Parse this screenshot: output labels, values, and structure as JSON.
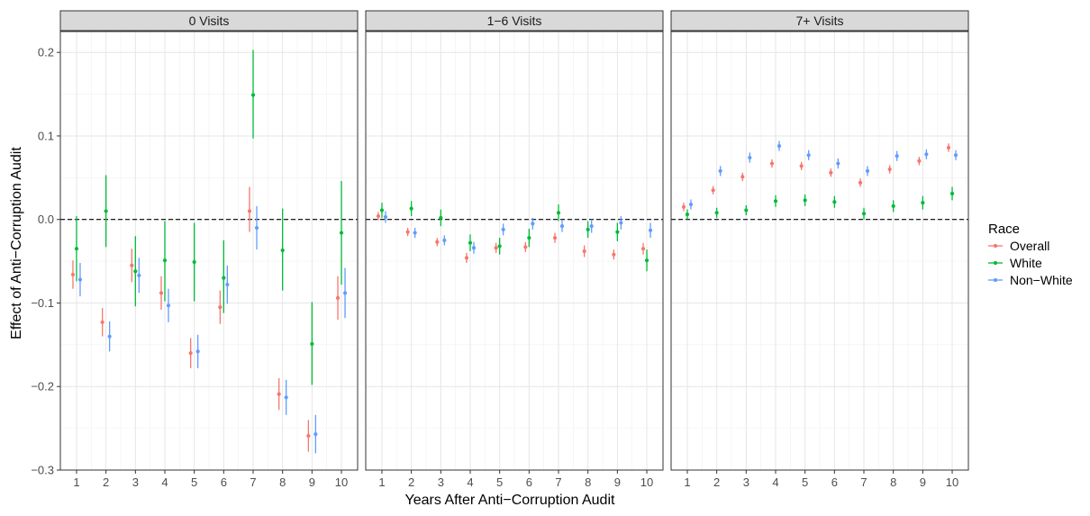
{
  "chart_data": {
    "type": "scatter",
    "subtype": "point-range faceted",
    "xlabel": "Years After Anti−Corruption Audit",
    "ylabel": "Effect of Anti−Corruption Audit",
    "x": [
      1,
      2,
      3,
      4,
      5,
      6,
      7,
      8,
      9,
      10
    ],
    "x_tick_labels": [
      "1",
      "2",
      "3",
      "4",
      "5",
      "6",
      "7",
      "8",
      "9",
      "10"
    ],
    "ylim": [
      -0.3,
      0.225
    ],
    "y_ticks": [
      -0.3,
      -0.2,
      -0.1,
      0.0,
      0.1,
      0.2
    ],
    "y_tick_labels": [
      "−0.3",
      "−0.2",
      "−0.1",
      "0.0",
      "0.1",
      "0.2"
    ],
    "reference_line": {
      "y": 0,
      "style": "dashed"
    },
    "grid": true,
    "legend": {
      "title": "Race",
      "position": "right",
      "entries": [
        {
          "name": "Overall",
          "color": "#F8766D"
        },
        {
          "name": "White",
          "color": "#00BA38"
        },
        {
          "name": "Non−White",
          "color": "#619CFF"
        }
      ]
    },
    "facets": [
      {
        "label": "0 Visits",
        "series": [
          {
            "name": "Overall",
            "color": "#F8766D",
            "values": [
              -0.066,
              -0.123,
              -0.055,
              -0.088,
              -0.16,
              -0.105,
              0.01,
              -0.209,
              -0.259,
              -0.094
            ],
            "lower": [
              -0.083,
              -0.14,
              -0.075,
              -0.108,
              -0.178,
              -0.125,
              -0.015,
              -0.228,
              -0.278,
              -0.12
            ],
            "upper": [
              -0.049,
              -0.106,
              -0.035,
              -0.068,
              -0.142,
              -0.085,
              0.039,
              -0.19,
              -0.24,
              -0.068
            ]
          },
          {
            "name": "White",
            "color": "#00BA38",
            "values": [
              -0.035,
              0.01,
              -0.062,
              -0.049,
              -0.051,
              -0.07,
              0.149,
              -0.037,
              -0.149,
              -0.016
            ],
            "lower": [
              -0.074,
              -0.033,
              -0.104,
              -0.098,
              -0.098,
              -0.112,
              0.097,
              -0.085,
              -0.198,
              -0.078
            ],
            "upper": [
              0.004,
              0.053,
              -0.02,
              -0.002,
              -0.004,
              -0.025,
              0.203,
              0.013,
              -0.099,
              0.046
            ]
          },
          {
            "name": "Non−White",
            "color": "#619CFF",
            "values": [
              -0.072,
              -0.14,
              -0.067,
              -0.103,
              -0.158,
              -0.078,
              -0.01,
              -0.213,
              -0.257,
              -0.088
            ],
            "lower": [
              -0.092,
              -0.158,
              -0.088,
              -0.123,
              -0.178,
              -0.101,
              -0.036,
              -0.234,
              -0.28,
              -0.118
            ],
            "upper": [
              -0.052,
              -0.122,
              -0.046,
              -0.083,
              -0.138,
              -0.055,
              0.016,
              -0.192,
              -0.234,
              -0.058
            ]
          }
        ]
      },
      {
        "label": "1−6 Visits",
        "series": [
          {
            "name": "Overall",
            "color": "#F8766D",
            "values": [
              0.004,
              -0.015,
              -0.027,
              -0.046,
              -0.034,
              -0.033,
              -0.022,
              -0.038,
              -0.042,
              -0.035
            ],
            "lower": [
              -0.001,
              -0.02,
              -0.032,
              -0.052,
              -0.04,
              -0.039,
              -0.028,
              -0.045,
              -0.048,
              -0.042
            ],
            "upper": [
              0.009,
              -0.01,
              -0.022,
              -0.04,
              -0.028,
              -0.027,
              -0.016,
              -0.031,
              -0.036,
              -0.028
            ]
          },
          {
            "name": "White",
            "color": "#00BA38",
            "values": [
              0.011,
              0.013,
              0.002,
              -0.028,
              -0.032,
              -0.022,
              0.008,
              -0.012,
              -0.015,
              -0.049
            ],
            "lower": [
              0.002,
              0.004,
              -0.008,
              -0.038,
              -0.042,
              -0.033,
              -0.002,
              -0.022,
              -0.026,
              -0.062
            ],
            "upper": [
              0.02,
              0.022,
              0.012,
              -0.018,
              -0.022,
              -0.011,
              0.018,
              -0.002,
              -0.004,
              -0.036
            ]
          },
          {
            "name": "Non−White",
            "color": "#619CFF",
            "values": [
              0.003,
              -0.016,
              -0.025,
              -0.034,
              -0.012,
              -0.005,
              -0.008,
              -0.008,
              -0.004,
              -0.013
            ],
            "lower": [
              -0.004,
              -0.022,
              -0.031,
              -0.041,
              -0.019,
              -0.012,
              -0.015,
              -0.016,
              -0.012,
              -0.022
            ],
            "upper": [
              0.01,
              -0.01,
              -0.019,
              -0.027,
              -0.005,
              0.002,
              -0.001,
              0.0,
              0.004,
              -0.004
            ]
          }
        ]
      },
      {
        "label": "7+ Visits",
        "series": [
          {
            "name": "Overall",
            "color": "#F8766D",
            "values": [
              0.015,
              0.035,
              0.051,
              0.067,
              0.064,
              0.056,
              0.044,
              0.06,
              0.07,
              0.086
            ],
            "lower": [
              0.01,
              0.03,
              0.046,
              0.062,
              0.059,
              0.051,
              0.039,
              0.055,
              0.065,
              0.081
            ],
            "upper": [
              0.02,
              0.04,
              0.056,
              0.072,
              0.069,
              0.061,
              0.049,
              0.065,
              0.075,
              0.091
            ]
          },
          {
            "name": "White",
            "color": "#00BA38",
            "values": [
              0.006,
              0.008,
              0.011,
              0.022,
              0.023,
              0.021,
              0.007,
              0.016,
              0.02,
              0.031
            ],
            "lower": [
              0.0,
              0.002,
              0.005,
              0.015,
              0.016,
              0.014,
              0.0,
              0.009,
              0.012,
              0.023
            ],
            "upper": [
              0.012,
              0.014,
              0.017,
              0.029,
              0.03,
              0.028,
              0.014,
              0.023,
              0.028,
              0.039
            ]
          },
          {
            "name": "Non−White",
            "color": "#619CFF",
            "values": [
              0.018,
              0.058,
              0.074,
              0.088,
              0.077,
              0.067,
              0.058,
              0.076,
              0.078,
              0.077
            ],
            "lower": [
              0.012,
              0.052,
              0.068,
              0.082,
              0.071,
              0.061,
              0.052,
              0.07,
              0.072,
              0.071
            ],
            "upper": [
              0.024,
              0.064,
              0.08,
              0.094,
              0.083,
              0.073,
              0.064,
              0.082,
              0.084,
              0.083
            ]
          }
        ]
      }
    ]
  }
}
